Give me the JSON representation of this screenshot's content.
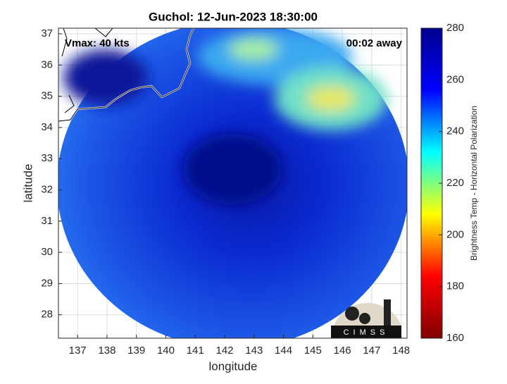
{
  "chart_data": {
    "type": "map",
    "title": "Guchol: 12-Jun-2023 18:30:00",
    "x_label": "longitude",
    "y_label": "latitude",
    "annotations": [
      "Vmax: 40 kts",
      "00:02 away"
    ],
    "logo_text": "CIMSS",
    "xlim": [
      136.35,
      148.2
    ],
    "xticks": [
      137,
      138,
      139,
      140,
      141,
      142,
      143,
      144,
      145,
      146,
      147,
      148
    ],
    "ylim": [
      27.25,
      37.18
    ],
    "yticks": [
      28,
      29,
      30,
      31,
      32,
      33,
      34,
      35,
      36,
      37
    ],
    "grid": true,
    "colorbar": {
      "label": "Brightness Temp - Horizontal Polarization",
      "lim": [
        160,
        280
      ],
      "ticks": [
        160,
        180,
        200,
        220,
        240,
        260,
        280
      ],
      "colormap": [
        "#800000",
        "#ff0000",
        "#ffff00",
        "#00ffff",
        "#0000ff",
        "#00008f"
      ]
    }
  }
}
